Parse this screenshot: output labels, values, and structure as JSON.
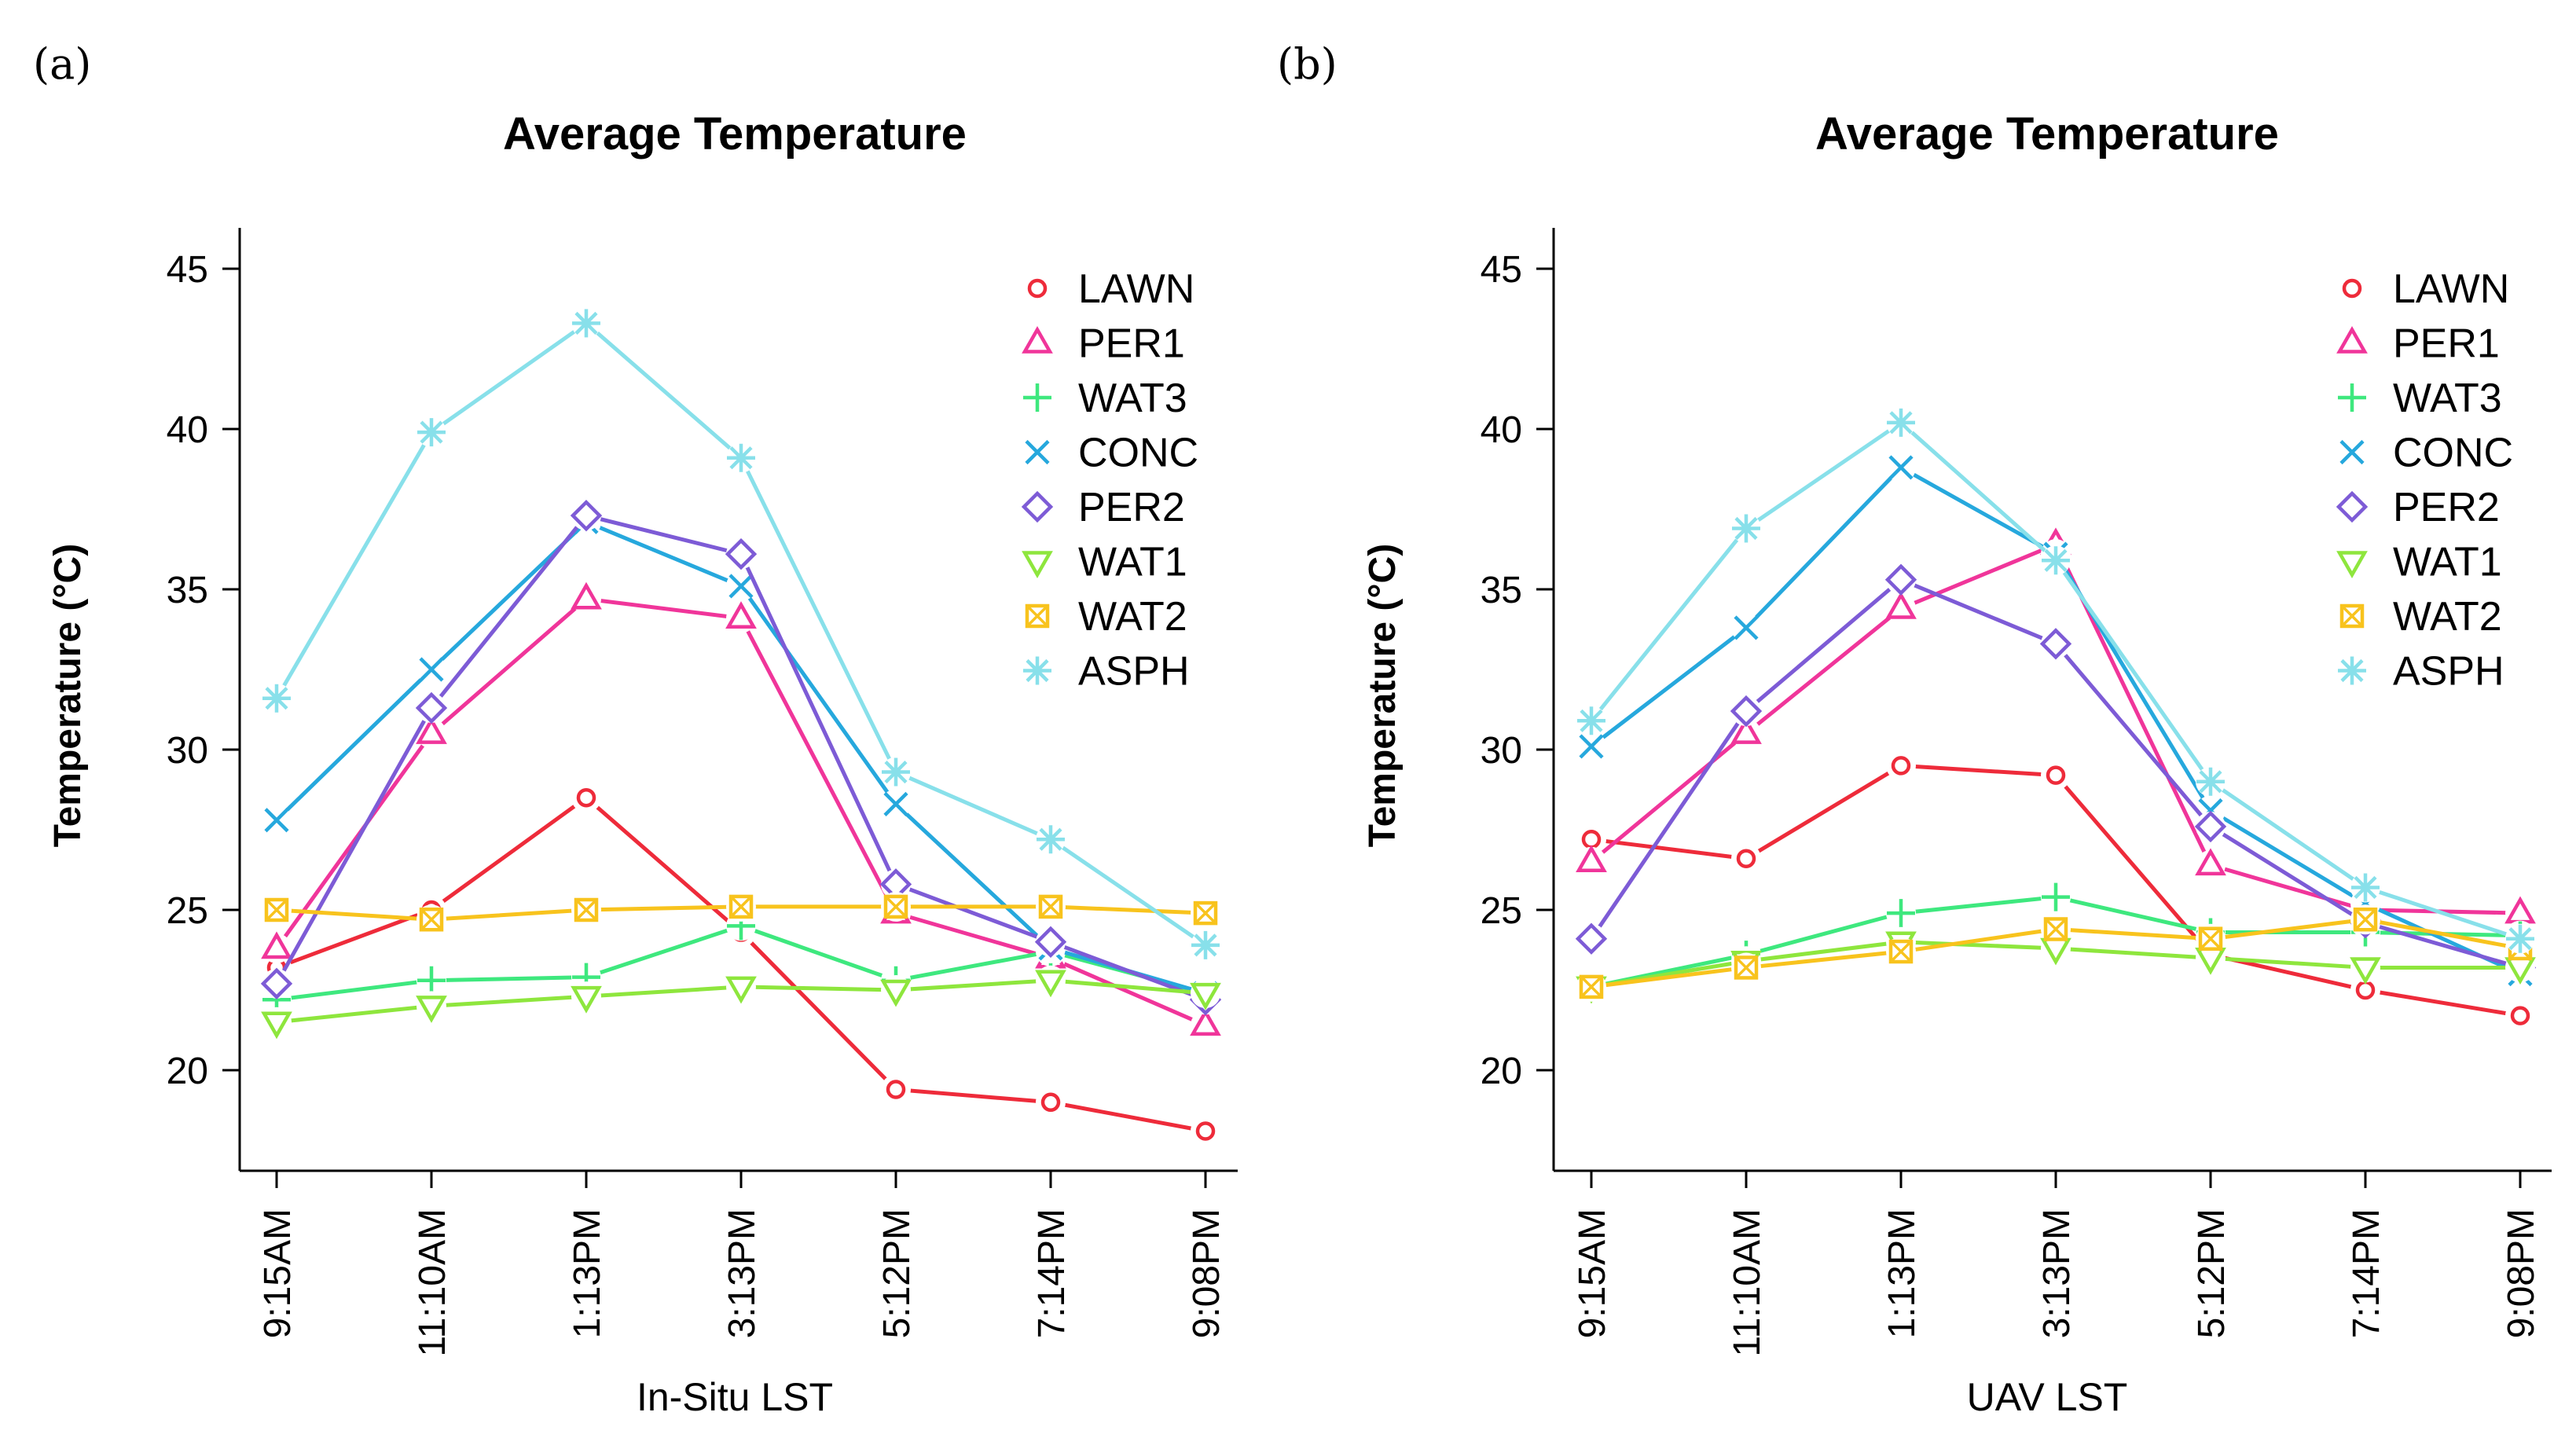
{
  "panels": [
    {
      "panel_label": "(a)",
      "title": "Average Temperature",
      "xlabel": "In-Situ LST",
      "ylabel": "Temperature (°C)"
    },
    {
      "panel_label": "(b)",
      "title": "Average Temperature",
      "xlabel": "UAV LST",
      "ylabel": "Temperature (°C)"
    }
  ],
  "colors": {
    "LAWN": "#ee2b3a",
    "PER1": "#f0359a",
    "WAT3": "#3ee87e",
    "CONC": "#26a8dd",
    "PER2": "#7d5bd6",
    "WAT1": "#8ee63d",
    "WAT2": "#f8c31d",
    "ASPH": "#88e0ea"
  },
  "chart_data": [
    {
      "type": "line",
      "title": "Average Temperature",
      "xlabel": "In-Situ LST",
      "ylabel": "Temperature (°C)",
      "categories": [
        "9:15AM",
        "11:10AM",
        "1:13PM",
        "3:13PM",
        "5:12PM",
        "7:14PM",
        "9:08PM"
      ],
      "ylim": [
        16.5,
        46
      ],
      "yticks": [
        20,
        25,
        30,
        35,
        40,
        45
      ],
      "legend_position": "top-right",
      "series": [
        {
          "name": "LAWN",
          "marker": "circle",
          "values": [
            23.2,
            25.0,
            28.5,
            24.3,
            19.4,
            19.0,
            18.1
          ]
        },
        {
          "name": "PER1",
          "marker": "triangle",
          "values": [
            23.8,
            30.5,
            34.7,
            34.1,
            24.9,
            23.5,
            21.4
          ]
        },
        {
          "name": "WAT3",
          "marker": "plus",
          "values": [
            22.2,
            22.8,
            22.9,
            24.5,
            22.8,
            23.7,
            22.4
          ]
        },
        {
          "name": "CONC",
          "marker": "cross",
          "values": [
            27.8,
            32.5,
            37.1,
            35.1,
            28.3,
            23.8,
            22.4
          ]
        },
        {
          "name": "PER2",
          "marker": "diamond",
          "values": [
            22.7,
            31.3,
            37.3,
            36.1,
            25.8,
            24.0,
            22.2
          ]
        },
        {
          "name": "WAT1",
          "marker": "triangle-down",
          "values": [
            21.5,
            22.0,
            22.3,
            22.6,
            22.5,
            22.8,
            22.4
          ]
        },
        {
          "name": "WAT2",
          "marker": "square-cross",
          "values": [
            25.0,
            24.7,
            25.0,
            25.1,
            25.1,
            25.1,
            24.9
          ]
        },
        {
          "name": "ASPH",
          "marker": "asterisk",
          "values": [
            31.6,
            39.9,
            43.3,
            39.1,
            29.3,
            27.2,
            23.9
          ]
        }
      ]
    },
    {
      "type": "line",
      "title": "Average Temperature",
      "xlabel": "UAV LST",
      "ylabel": "Temperature (°C)",
      "categories": [
        "9:15AM",
        "11:10AM",
        "1:13PM",
        "3:13PM",
        "5:12PM",
        "7:14PM",
        "9:08PM"
      ],
      "ylim": [
        16.5,
        46
      ],
      "yticks": [
        20,
        25,
        30,
        35,
        40,
        45
      ],
      "legend_position": "top-right",
      "series": [
        {
          "name": "LAWN",
          "marker": "circle",
          "values": [
            27.2,
            26.6,
            29.5,
            29.2,
            23.6,
            22.5,
            21.7
          ]
        },
        {
          "name": "PER1",
          "marker": "triangle",
          "values": [
            26.5,
            30.5,
            34.4,
            36.4,
            26.4,
            25.0,
            24.9
          ]
        },
        {
          "name": "WAT3",
          "marker": "plus",
          "values": [
            22.6,
            23.6,
            24.9,
            25.4,
            24.3,
            24.3,
            24.2
          ]
        },
        {
          "name": "CONC",
          "marker": "cross",
          "values": [
            30.1,
            33.8,
            38.8,
            36.1,
            28.1,
            25.2,
            23.0
          ]
        },
        {
          "name": "PER2",
          "marker": "diamond",
          "values": [
            24.1,
            31.2,
            35.3,
            33.3,
            27.6,
            24.6,
            23.2
          ]
        },
        {
          "name": "WAT1",
          "marker": "triangle-down",
          "values": [
            22.6,
            23.4,
            24.0,
            23.8,
            23.5,
            23.2,
            23.2
          ]
        },
        {
          "name": "WAT2",
          "marker": "square-cross",
          "values": [
            22.6,
            23.2,
            23.7,
            24.4,
            24.1,
            24.7,
            23.8
          ]
        },
        {
          "name": "ASPH",
          "marker": "asterisk",
          "values": [
            30.9,
            36.9,
            40.2,
            35.9,
            29.0,
            25.7,
            24.1
          ]
        }
      ]
    }
  ]
}
